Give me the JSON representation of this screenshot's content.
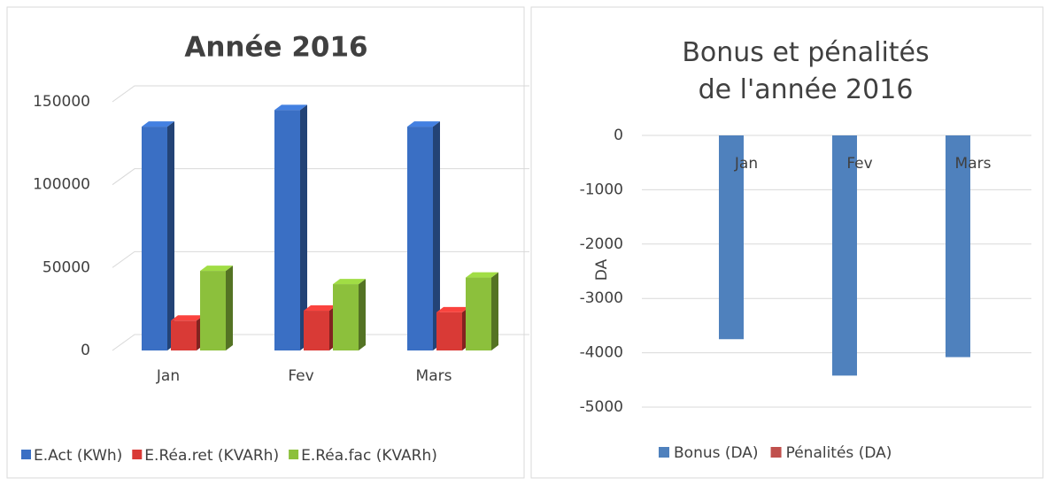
{
  "chart_data": [
    {
      "type": "bar3d",
      "title": "Année 2016",
      "categories": [
        "Jan",
        "Fev",
        "Mars"
      ],
      "series": [
        {
          "name": "E.Act (KWh)",
          "color": "#3a6fc4",
          "values": [
            135000,
            145000,
            135000
          ]
        },
        {
          "name": "E.Réa.ret (KVARh)",
          "color": "#d93a36",
          "values": [
            18000,
            24000,
            23000
          ]
        },
        {
          "name": "E.Réa.fac (KVARh)",
          "color": "#8cc03c",
          "values": [
            48000,
            40000,
            44000
          ]
        }
      ],
      "ylim": [
        0,
        150000
      ],
      "yticks": [
        0,
        50000,
        100000,
        150000
      ],
      "grid": true,
      "legend": "bottom"
    },
    {
      "type": "bar",
      "title": "Bonus et pénalités de l'année 2016",
      "ylabel": "DA",
      "categories": [
        "Jan",
        "Fev",
        "Mars"
      ],
      "series": [
        {
          "name": "Bonus (DA)",
          "color": "#4f81bd",
          "values": [
            -3750,
            -4420,
            -4080
          ]
        },
        {
          "name": "Pénalités (DA)",
          "color": "#c0504d",
          "values": [
            0,
            0,
            0
          ]
        }
      ],
      "ylim": [
        -5000,
        0
      ],
      "yticks": [
        -5000,
        -4000,
        -3000,
        -2000,
        -1000,
        0
      ],
      "grid": true,
      "legend": "bottom"
    }
  ]
}
